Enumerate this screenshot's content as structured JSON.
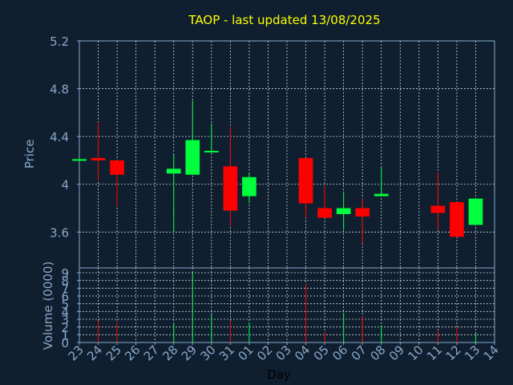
{
  "chart_data": {
    "type": "candlestick",
    "title": "TAOP - last updated 13/08/2025",
    "xlabel": "Day",
    "price_panel": {
      "ylabel": "Price",
      "ylim": [
        3.3,
        5.2
      ],
      "yticks": [
        {
          "value": 3.6,
          "label": "3.6"
        },
        {
          "value": 4.0,
          "label": "4"
        },
        {
          "value": 4.4,
          "label": "4.4"
        },
        {
          "value": 4.8,
          "label": "4.8"
        },
        {
          "value": 5.2,
          "label": "5.2"
        }
      ]
    },
    "volume_panel": {
      "ylabel": "Volume (0000)",
      "ylim": [
        0,
        9
      ],
      "yticks": [
        {
          "value": 0,
          "label": "0"
        },
        {
          "value": 1,
          "label": "1"
        },
        {
          "value": 2,
          "label": "2"
        },
        {
          "value": 3,
          "label": "3"
        },
        {
          "value": 4,
          "label": "4"
        },
        {
          "value": 5,
          "label": "5"
        },
        {
          "value": 6,
          "label": "6"
        },
        {
          "value": 7,
          "label": "7"
        },
        {
          "value": 8,
          "label": "8"
        },
        {
          "value": 9,
          "label": "9"
        }
      ]
    },
    "x_ticks": [
      "23",
      "24",
      "25",
      "26",
      "27",
      "28",
      "29",
      "30",
      "31",
      "01",
      "02",
      "03",
      "04",
      "05",
      "06",
      "07",
      "08",
      "09",
      "10",
      "11",
      "12",
      "13",
      "14"
    ],
    "colors": {
      "up": "#00ff3c",
      "down": "#ff0000"
    },
    "candles": [
      {
        "day": "23",
        "open": 4.21,
        "high": 4.22,
        "low": 4.2,
        "close": 4.21,
        "volume": 0,
        "dir": "up"
      },
      {
        "day": "24",
        "open": 4.22,
        "high": 4.52,
        "low": 4.03,
        "close": 4.2,
        "volume": 2.8,
        "dir": "down"
      },
      {
        "day": "25",
        "open": 4.2,
        "high": 4.2,
        "low": 3.82,
        "close": 4.08,
        "volume": 2.6,
        "dir": "down"
      },
      {
        "day": "28",
        "open": 4.09,
        "high": 4.25,
        "low": 3.6,
        "close": 4.13,
        "volume": 2.5,
        "dir": "up"
      },
      {
        "day": "29",
        "open": 4.08,
        "high": 4.7,
        "low": 4.08,
        "close": 4.37,
        "volume": 9.0,
        "dir": "up"
      },
      {
        "day": "30",
        "open": 4.27,
        "high": 4.51,
        "low": 4.26,
        "close": 4.28,
        "volume": 3.6,
        "dir": "up"
      },
      {
        "day": "31",
        "open": 4.15,
        "high": 4.48,
        "low": 3.65,
        "close": 3.78,
        "volume": 2.8,
        "dir": "down"
      },
      {
        "day": "01",
        "open": 3.9,
        "high": 4.09,
        "low": 3.84,
        "close": 4.06,
        "volume": 2.6,
        "dir": "up"
      },
      {
        "day": "04",
        "open": 4.22,
        "high": 4.22,
        "low": 3.72,
        "close": 3.84,
        "volume": 7.5,
        "dir": "down"
      },
      {
        "day": "05",
        "open": 3.8,
        "high": 3.99,
        "low": 3.72,
        "close": 3.72,
        "volume": 1.3,
        "dir": "down"
      },
      {
        "day": "06",
        "open": 3.75,
        "high": 3.94,
        "low": 3.62,
        "close": 3.8,
        "volume": 3.8,
        "dir": "up"
      },
      {
        "day": "07",
        "open": 3.8,
        "high": 3.88,
        "low": 3.51,
        "close": 3.73,
        "volume": 3.4,
        "dir": "down"
      },
      {
        "day": "08",
        "open": 3.9,
        "high": 4.14,
        "low": 3.9,
        "close": 3.92,
        "volume": 2.2,
        "dir": "up"
      },
      {
        "day": "11",
        "open": 3.82,
        "high": 4.1,
        "low": 3.62,
        "close": 3.76,
        "volume": 1.6,
        "dir": "down"
      },
      {
        "day": "12",
        "open": 3.85,
        "high": 3.85,
        "low": 3.56,
        "close": 3.56,
        "volume": 2.0,
        "dir": "down"
      },
      {
        "day": "13",
        "open": 3.66,
        "high": 3.88,
        "low": 3.66,
        "close": 3.88,
        "volume": 1.1,
        "dir": "up"
      }
    ]
  }
}
